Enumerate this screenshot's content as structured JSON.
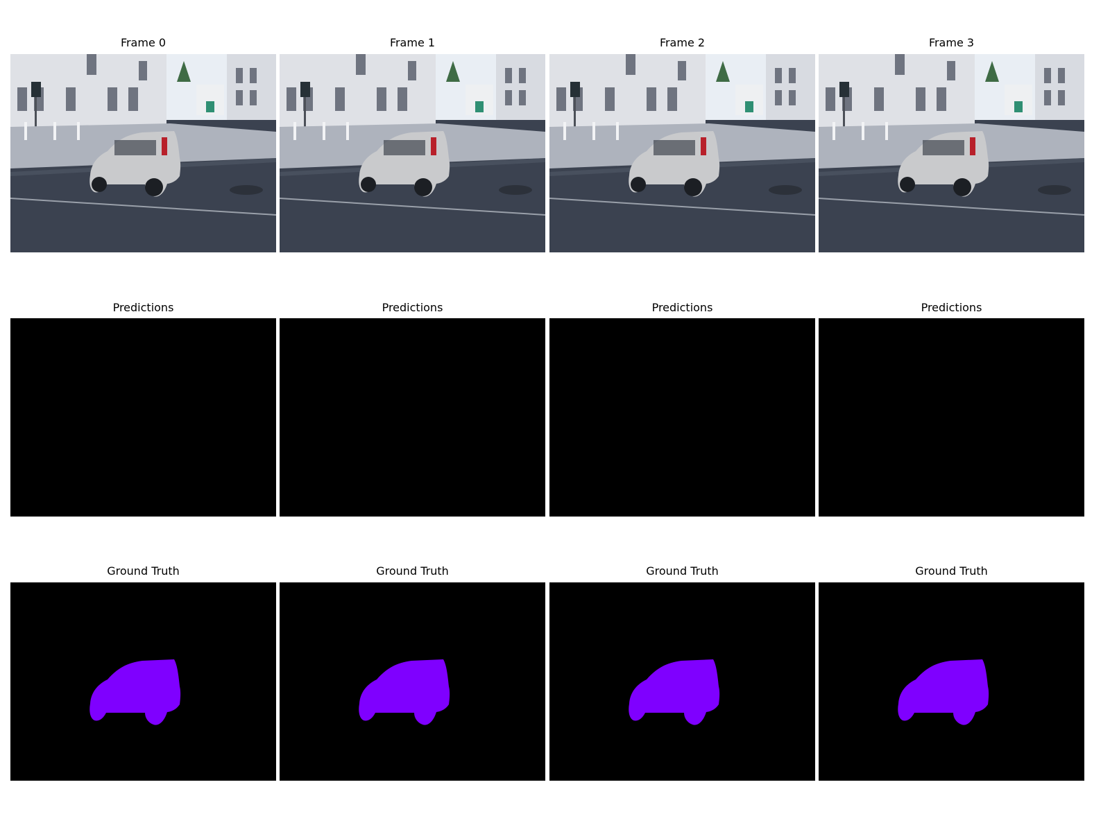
{
  "figure": {
    "rows": [
      {
        "kind": "frame",
        "titles": [
          "Frame 0",
          "Frame 1",
          "Frame 2",
          "Frame 3"
        ]
      },
      {
        "kind": "prediction",
        "titles": [
          "Predictions",
          "Predictions",
          "Predictions",
          "Predictions"
        ]
      },
      {
        "kind": "ground-truth",
        "titles": [
          "Ground Truth",
          "Ground Truth",
          "Ground Truth",
          "Ground Truth"
        ]
      }
    ],
    "colors": {
      "mask_background": "#000000",
      "mask_foreground": "#7f00ff",
      "sky": "#e9eef4",
      "building": "#dfe1e6",
      "road": "#3b4250",
      "car_body": "#c9cacc"
    }
  }
}
